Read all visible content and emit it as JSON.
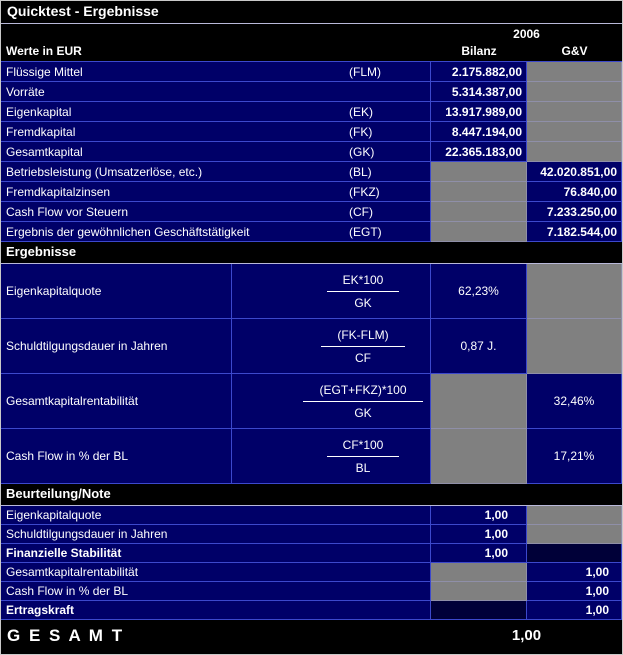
{
  "title": "Quicktest - Ergebnisse",
  "header": {
    "year": "2006",
    "werte_label": "Werte in EUR",
    "bilanz_label": "Bilanz",
    "guv_label": "G&V"
  },
  "values": {
    "rows": [
      {
        "label": "Flüssige Mittel",
        "code": "(FLM)",
        "bilanz": "2.175.882,00",
        "guv": ""
      },
      {
        "label": "Vorräte",
        "code": "",
        "bilanz": "5.314.387,00",
        "guv": ""
      },
      {
        "label": "Eigenkapital",
        "code": "(EK)",
        "bilanz": "13.917.989,00",
        "guv": ""
      },
      {
        "label": "Fremdkapital",
        "code": "(FK)",
        "bilanz": "8.447.194,00",
        "guv": ""
      },
      {
        "label": "Gesamtkapital",
        "code": "(GK)",
        "bilanz": "22.365.183,00",
        "guv": ""
      },
      {
        "label": "Betriebsleistung (Umsatzerlöse, etc.)",
        "code": "(BL)",
        "bilanz": "",
        "guv": "42.020.851,00"
      },
      {
        "label": "Fremdkapitalzinsen",
        "code": "(FKZ)",
        "bilanz": "",
        "guv": "76.840,00"
      },
      {
        "label": "Cash Flow vor Steuern",
        "code": "(CF)",
        "bilanz": "",
        "guv": "7.233.250,00"
      },
      {
        "label": "Ergebnis der gewöhnlichen Geschäftstätigkeit",
        "code": "(EGT)",
        "bilanz": "",
        "guv": "7.182.544,00"
      }
    ]
  },
  "ergebnisse": {
    "section_title": "Ergebnisse",
    "rows": [
      {
        "label": "Eigenkapitalquote",
        "numerator": "EK*100",
        "denominator": "GK",
        "bilanz": "62,23%",
        "guv": ""
      },
      {
        "label": "Schuldtilgungsdauer in Jahren",
        "numerator": "(FK-FLM)",
        "denominator": "CF",
        "bilanz": "0,87 J.",
        "guv": ""
      },
      {
        "label": "Gesamtkapitalrentabilität",
        "numerator": "(EGT+FKZ)*100",
        "denominator": "GK",
        "bilanz": "",
        "guv": "32,46%"
      },
      {
        "label": "Cash Flow in % der BL",
        "numerator": "CF*100",
        "denominator": "BL",
        "bilanz": "",
        "guv": "17,21%"
      }
    ]
  },
  "beurteilung": {
    "section_title": "Beurteilung/Note",
    "rows": [
      {
        "label": "Eigenkapitalquote",
        "bilanz": "1,00",
        "guv": ""
      },
      {
        "label": "Schuldtilgungsdauer in Jahren",
        "bilanz": "1,00",
        "guv": ""
      },
      {
        "label": "Finanzielle Stabilität",
        "bilanz": "1,00",
        "guv": ""
      },
      {
        "label": "Gesamtkapitalrentabilität",
        "bilanz": "",
        "guv": "1,00"
      },
      {
        "label": "Cash Flow in % der BL",
        "bilanz": "",
        "guv": "1,00"
      },
      {
        "label": "Ertragskraft",
        "bilanz": "",
        "guv": "1,00"
      }
    ]
  },
  "total": {
    "label": "G E S A M T",
    "value": "1,00"
  },
  "colors": {
    "row_navy": "#000068",
    "disabled_gray": "#808080",
    "grid_blue": "#3c48cc",
    "background_black": "#000000"
  }
}
